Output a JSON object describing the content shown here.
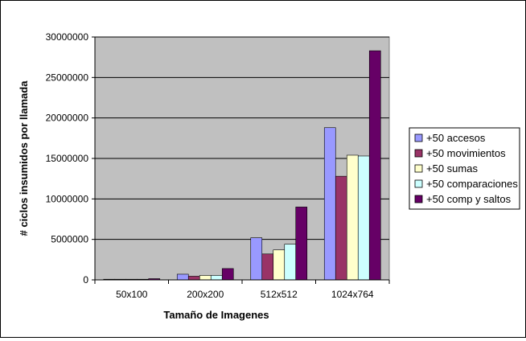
{
  "chart_data": {
    "type": "bar",
    "title": "",
    "xlabel": "Tamaño de Imagenes",
    "ylabel": "# ciclos insumidos por llamada",
    "categories": [
      "50x100",
      "200x200",
      "512x512",
      "1024x764"
    ],
    "ylim": [
      0,
      30000000
    ],
    "yticks": [
      "0",
      "5000000",
      "10000000",
      "15000000",
      "20000000",
      "25000000",
      "30000000"
    ],
    "grid": true,
    "legend_position": "right",
    "series": [
      {
        "name": "+50 accesos",
        "color": "#9999ff",
        "values": [
          50000,
          700000,
          5200000,
          18800000
        ]
      },
      {
        "name": "+50 movimientos",
        "color": "#993366",
        "values": [
          30000,
          450000,
          3200000,
          12800000
        ]
      },
      {
        "name": "+50 sumas",
        "color": "#ffffcc",
        "values": [
          40000,
          550000,
          3700000,
          15400000
        ]
      },
      {
        "name": "+50 comparaciones",
        "color": "#ccffff",
        "values": [
          40000,
          550000,
          4400000,
          15300000
        ]
      },
      {
        "name": "+50 comp y saltos",
        "color": "#660066",
        "values": [
          150000,
          1400000,
          9000000,
          28300000
        ]
      }
    ],
    "plot_background": "#c0c0c0"
  }
}
